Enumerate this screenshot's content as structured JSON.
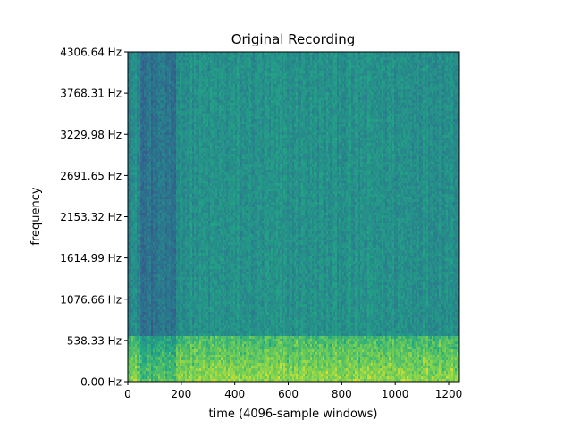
{
  "chart_data": {
    "type": "heatmap",
    "title": "Original Recording",
    "xlabel": "time (4096-sample windows)",
    "ylabel": "frequency",
    "xlim": [
      0,
      1240
    ],
    "ylim": [
      0,
      4306.64
    ],
    "x_ticks": [
      0,
      200,
      400,
      600,
      800,
      1000,
      1200
    ],
    "x_tick_labels": [
      "0",
      "200",
      "400",
      "600",
      "800",
      "1000",
      "1200"
    ],
    "y_ticks": [
      0,
      538.33,
      1076.66,
      1614.99,
      2153.32,
      2691.65,
      3229.98,
      3768.31,
      4306.64
    ],
    "y_tick_labels": [
      "0.00 Hz",
      "538.33 Hz",
      "1076.66 Hz",
      "1614.99 Hz",
      "2153.32 Hz",
      "2691.65 Hz",
      "3229.98 Hz",
      "3768.31 Hz",
      "4306.64 Hz"
    ],
    "colormap": "viridis",
    "colormap_colors": [
      "#440154",
      "#414487",
      "#2a788e",
      "#22a884",
      "#7ad151",
      "#fde725"
    ],
    "grid": false,
    "description_levels": {
      "low_freq_band_hz": [
        0,
        600
      ],
      "low_freq_band_intensity": "high",
      "mid_high_intensity": "medium",
      "early_time_low_intensity_range": [
        50,
        180
      ]
    }
  }
}
